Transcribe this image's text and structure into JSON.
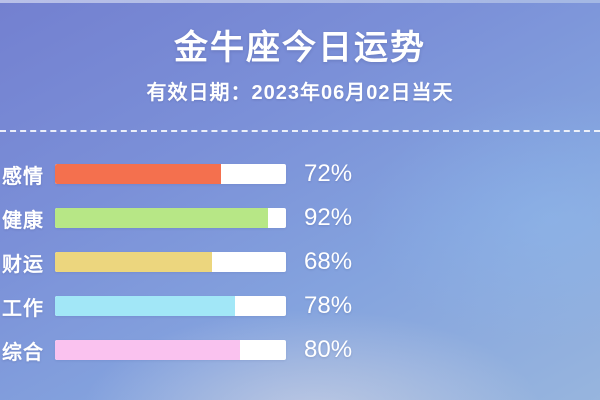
{
  "page": {
    "title": "金牛座今日运势",
    "valid_date_label": "有效日期：2023年06月02日当天"
  },
  "chart_data": {
    "type": "bar",
    "orientation": "horizontal",
    "title": "金牛座今日运势",
    "subtitle": "有效日期：2023年06月02日当天",
    "categories": [
      "感情",
      "健康",
      "财运",
      "工作",
      "综合"
    ],
    "values": [
      72,
      92,
      68,
      78,
      80
    ],
    "value_labels": [
      "72%",
      "92%",
      "68%",
      "78%",
      "80%"
    ],
    "bar_colors": [
      "#f4704e",
      "#b7e786",
      "#ecd67e",
      "#a2e7f7",
      "#fac2ef"
    ],
    "track_color": "#ffffff",
    "xlim": [
      0,
      100
    ],
    "grid": false,
    "legend": false,
    "value_label_position": "right-of-bar"
  },
  "colors": {
    "text": "#ffffff",
    "divider": "rgba(255,255,255,0.85)",
    "background_top_left": "#7380d0",
    "background_bottom_right": "#97b5de"
  }
}
